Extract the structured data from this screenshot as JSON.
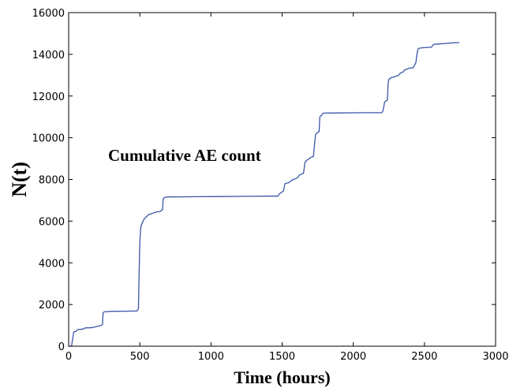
{
  "chart_data": {
    "type": "line",
    "title": "",
    "xlabel": "Time (hours)",
    "ylabel": "N(t)",
    "annotation": "Cumulative AE count",
    "xlim": [
      0,
      3000
    ],
    "ylim": [
      0,
      16000
    ],
    "x_ticks": [
      0,
      500,
      1000,
      1500,
      2000,
      2500,
      3000
    ],
    "y_ticks": [
      0,
      2000,
      4000,
      6000,
      8000,
      10000,
      12000,
      14000,
      16000
    ],
    "x_tick_labels": [
      "0",
      "500",
      "1000",
      "1500",
      "2000",
      "2500",
      "3000"
    ],
    "y_tick_labels": [
      "0",
      "2000",
      "4000",
      "6000",
      "8000",
      "10000",
      "12000",
      "14000",
      "16000"
    ],
    "grid": false,
    "legend": "none",
    "line_color": "#3a56a8",
    "series": [
      {
        "x": [
          0,
          20,
          35,
          38,
          50,
          60,
          65,
          100,
          110,
          120,
          150,
          170,
          200,
          230,
          238,
          242,
          250,
          300,
          400,
          480,
          490,
          495,
          500,
          503,
          505,
          510,
          520,
          530,
          545,
          560,
          580,
          600,
          620,
          640,
          650,
          660,
          663,
          667,
          680,
          700,
          800,
          900,
          1000,
          1100,
          1200,
          1300,
          1400,
          1470,
          1480,
          1500,
          1510,
          1520,
          1550,
          1555,
          1580,
          1600,
          1610,
          1620,
          1650,
          1660,
          1670,
          1690,
          1700,
          1720,
          1725,
          1735,
          1740,
          1760,
          1765,
          1780,
          1785,
          1790,
          1800,
          1850,
          1900,
          2000,
          2100,
          2200,
          2210,
          2220,
          2225,
          2240,
          2245,
          2250,
          2260,
          2270,
          2280,
          2300,
          2320,
          2330,
          2350,
          2360,
          2380,
          2400,
          2420,
          2440,
          2450,
          2455,
          2460,
          2470,
          2500,
          2550,
          2560,
          2570,
          2600,
          2650,
          2700,
          2745
        ],
        "y": [
          0,
          0,
          650,
          700,
          700,
          780,
          800,
          820,
          850,
          880,
          880,
          900,
          950,
          1000,
          1050,
          1600,
          1650,
          1670,
          1680,
          1690,
          1800,
          3500,
          5000,
          5300,
          5600,
          5800,
          5950,
          6100,
          6200,
          6300,
          6350,
          6400,
          6450,
          6450,
          6500,
          6550,
          7000,
          7100,
          7150,
          7160,
          7165,
          7170,
          7175,
          7180,
          7185,
          7190,
          7200,
          7200,
          7300,
          7400,
          7450,
          7800,
          7850,
          7900,
          8000,
          8050,
          8100,
          8200,
          8300,
          8800,
          8900,
          9000,
          9050,
          9100,
          9500,
          10150,
          10200,
          10300,
          11000,
          11100,
          11150,
          11180,
          11180,
          11185,
          11190,
          11195,
          11200,
          11200,
          11300,
          11700,
          11750,
          11800,
          12600,
          12800,
          12850,
          12900,
          12900,
          12950,
          13000,
          13100,
          13150,
          13250,
          13300,
          13350,
          13350,
          13600,
          14100,
          14250,
          14280,
          14300,
          14320,
          14340,
          14450,
          14480,
          14500,
          14520,
          14550,
          14560
        ]
      }
    ]
  }
}
